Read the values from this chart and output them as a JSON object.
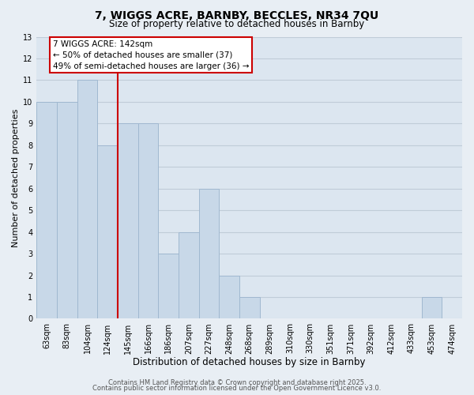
{
  "title": "7, WIGGS ACRE, BARNBY, BECCLES, NR34 7QU",
  "subtitle": "Size of property relative to detached houses in Barnby",
  "xlabel": "Distribution of detached houses by size in Barnby",
  "ylabel": "Number of detached properties",
  "bar_labels": [
    "63sqm",
    "83sqm",
    "104sqm",
    "124sqm",
    "145sqm",
    "166sqm",
    "186sqm",
    "207sqm",
    "227sqm",
    "248sqm",
    "268sqm",
    "289sqm",
    "310sqm",
    "330sqm",
    "351sqm",
    "371sqm",
    "392sqm",
    "412sqm",
    "433sqm",
    "453sqm",
    "474sqm"
  ],
  "bar_values": [
    10,
    10,
    11,
    8,
    9,
    9,
    3,
    4,
    6,
    2,
    1,
    0,
    0,
    0,
    0,
    0,
    0,
    0,
    0,
    1,
    0
  ],
  "bar_color": "#c8d8e8",
  "bar_edgecolor": "#a0b8d0",
  "highlight_line_label": "145sqm",
  "highlight_line_color": "#cc0000",
  "annotation_text": "7 WIGGS ACRE: 142sqm\n← 50% of detached houses are smaller (37)\n49% of semi-detached houses are larger (36) →",
  "annotation_box_color": "#ffffff",
  "annotation_box_edgecolor": "#cc0000",
  "ylim": [
    0,
    13
  ],
  "yticks": [
    0,
    1,
    2,
    3,
    4,
    5,
    6,
    7,
    8,
    9,
    10,
    11,
    12,
    13
  ],
  "background_color": "#e8eef4",
  "plot_bg_color": "#dce6f0",
  "grid_color": "#c0ccd8",
  "footer_line1": "Contains HM Land Registry data © Crown copyright and database right 2025.",
  "footer_line2": "Contains public sector information licensed under the Open Government Licence v3.0.",
  "title_fontsize": 10,
  "subtitle_fontsize": 8.5,
  "xlabel_fontsize": 8.5,
  "ylabel_fontsize": 8,
  "tick_fontsize": 7,
  "footer_fontsize": 6,
  "annotation_fontsize": 7.5
}
